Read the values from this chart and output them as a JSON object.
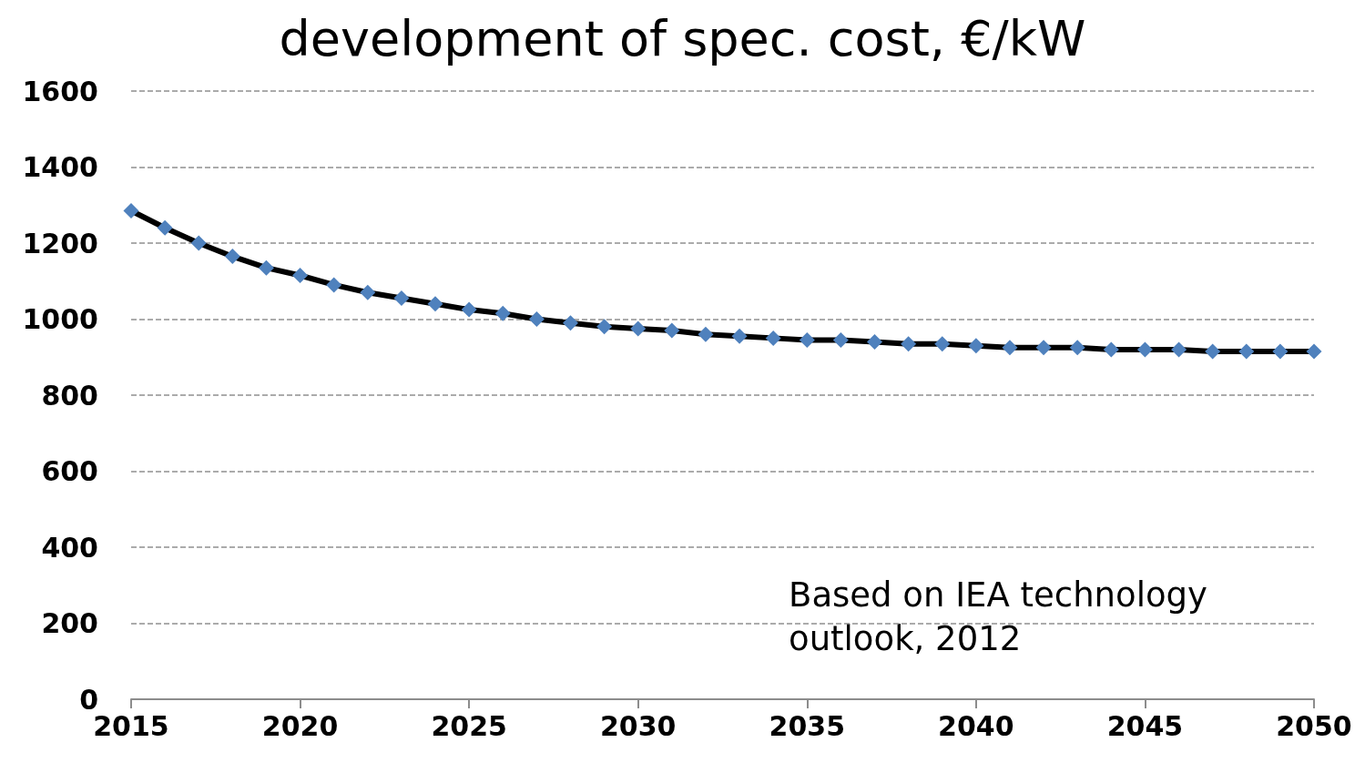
{
  "chart_data": {
    "type": "line",
    "title": "development of spec. cost, €/kW",
    "x": [
      2015,
      2016,
      2017,
      2018,
      2019,
      2020,
      2021,
      2022,
      2023,
      2024,
      2025,
      2026,
      2027,
      2028,
      2029,
      2030,
      2031,
      2032,
      2033,
      2034,
      2035,
      2036,
      2037,
      2038,
      2039,
      2040,
      2041,
      2042,
      2043,
      2044,
      2045,
      2046,
      2047,
      2048,
      2049,
      2050
    ],
    "series": [
      {
        "color": "#4f81bd",
        "values": [
          1285,
          1240,
          1200,
          1165,
          1135,
          1115,
          1090,
          1070,
          1055,
          1040,
          1025,
          1015,
          1000,
          990,
          980,
          975,
          970,
          960,
          955,
          950,
          945,
          945,
          940,
          935,
          935,
          930,
          925,
          925,
          925,
          920,
          920,
          920,
          915,
          915,
          915,
          915
        ]
      }
    ],
    "xlim": [
      2015,
      2050
    ],
    "xticks": [
      2015,
      2020,
      2025,
      2030,
      2035,
      2040,
      2045,
      2050
    ],
    "ylim": [
      0,
      1600
    ],
    "yticks": [
      0,
      200,
      400,
      600,
      800,
      1000,
      1200,
      1400,
      1600
    ],
    "grid": "y",
    "marker": "diamond",
    "line_style": "solid",
    "annotations": [
      "Based on IEA technology outlook, 2012"
    ]
  }
}
